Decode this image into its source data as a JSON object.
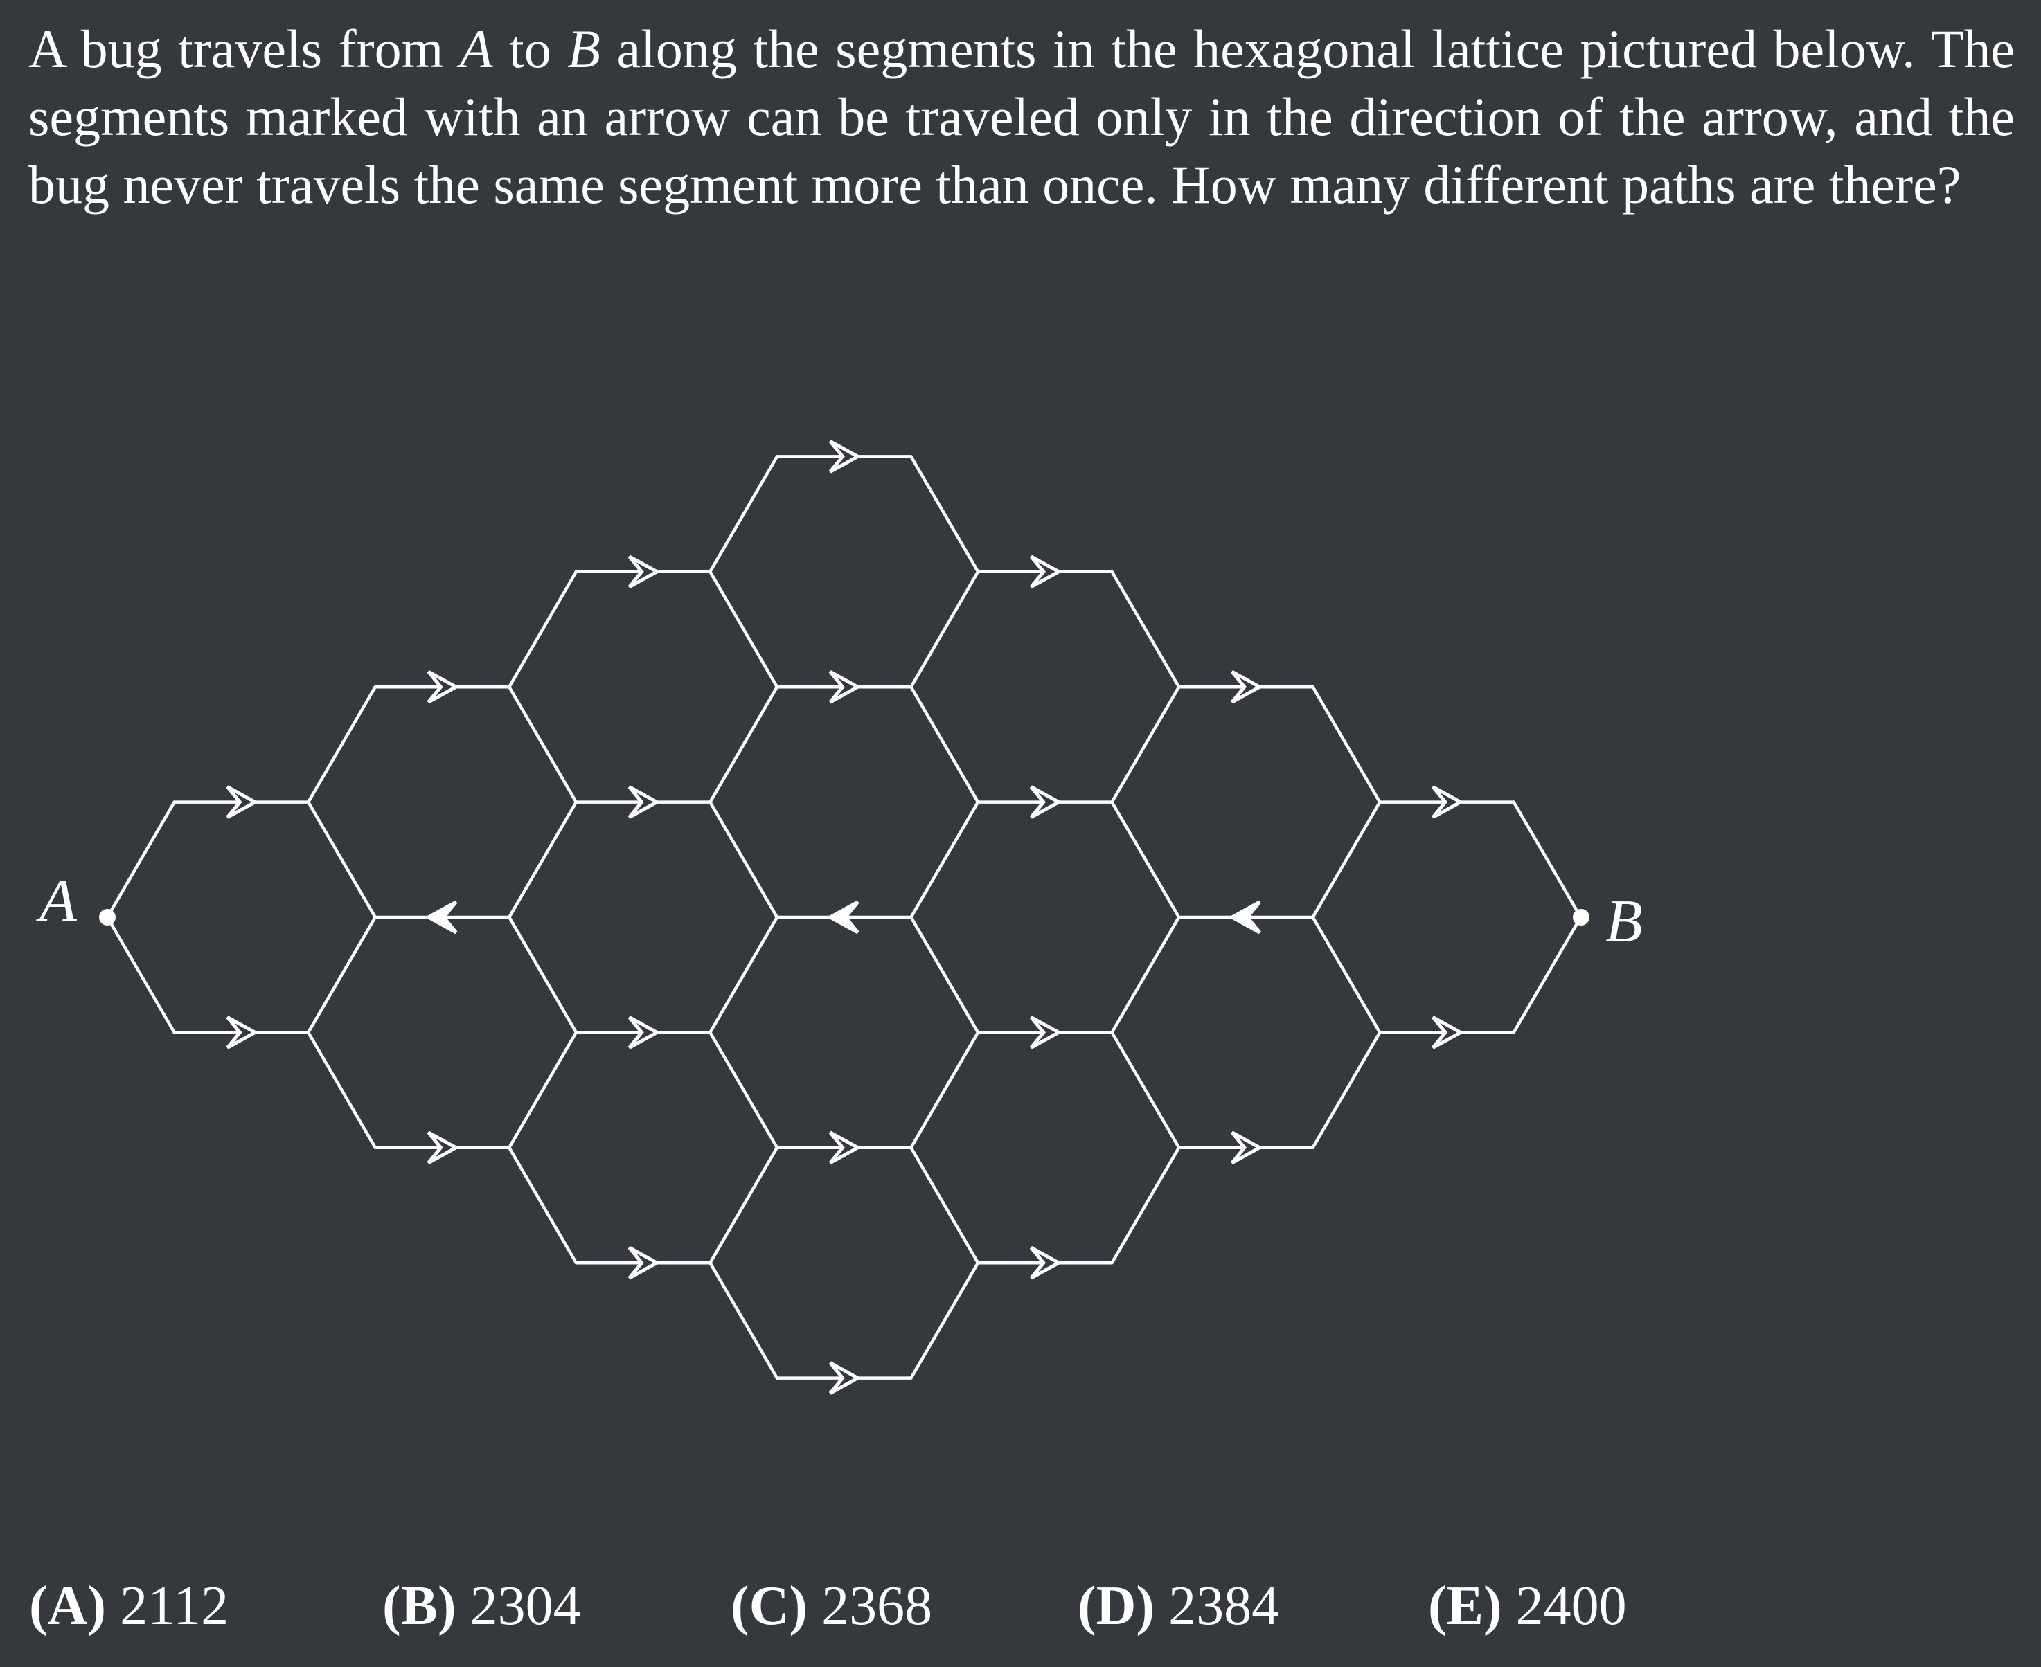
{
  "problem": {
    "part1": "A bug travels from ",
    "var_a": "A",
    "part2": " to ",
    "var_b": "B",
    "part3": " along the segments in the hexagonal lattice pictured below.  The segments marked with an arrow can be traveled only in the direction of the arrow, and the bug never travels the same segment more than once. How many different paths are there?"
  },
  "figure": {
    "start_label": "A",
    "end_label": "B",
    "line_color": "#ffffff",
    "background_color": "#35383d"
  },
  "choices": [
    {
      "letter": "(A)",
      "value": "2112"
    },
    {
      "letter": "(B)",
      "value": "2304"
    },
    {
      "letter": "(C)",
      "value": "2368"
    },
    {
      "letter": "(D)",
      "value": "2384"
    },
    {
      "letter": "(E)",
      "value": "2400"
    }
  ]
}
